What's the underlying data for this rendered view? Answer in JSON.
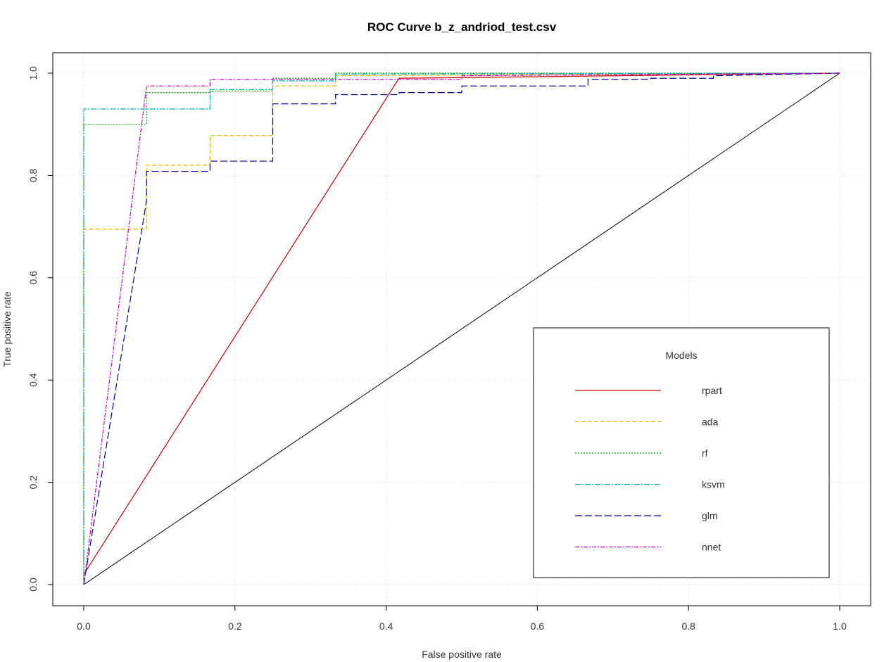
{
  "chart_data": {
    "type": "line",
    "title": "ROC Curve  b_z_andriod_test.csv",
    "xlabel": "False positive rate",
    "ylabel": "True positive rate",
    "xlim": [
      0,
      1
    ],
    "ylim": [
      0,
      1
    ],
    "x_ticks": [
      "0.0",
      "0.2",
      "0.4",
      "0.6",
      "0.8",
      "1.0"
    ],
    "y_ticks": [
      "0.0",
      "0.2",
      "0.4",
      "0.6",
      "0.8",
      "1.0"
    ],
    "grid": true,
    "legend": {
      "title": "Models",
      "position": "bottom-right"
    },
    "series": [
      {
        "name": "rpart",
        "color": "#cc0000",
        "dash": "none",
        "x": [
          0,
          0.417,
          1.0
        ],
        "y": [
          0.02,
          0.99,
          1.0
        ]
      },
      {
        "name": "ada",
        "color": "#e6b800",
        "dash": "6,3",
        "x": [
          0,
          0,
          0.083,
          0.083,
          0.167,
          0.167,
          0.25,
          0.25,
          0.333,
          0.333,
          1.0
        ],
        "y": [
          0,
          0.695,
          0.695,
          0.82,
          0.82,
          0.878,
          0.878,
          0.975,
          0.975,
          0.995,
          1.0
        ]
      },
      {
        "name": "rf",
        "color": "#00a000",
        "dash": "2,2",
        "x": [
          0,
          0,
          0.083,
          0.083,
          0.167,
          0.167,
          0.25,
          0.25,
          0.333,
          0.333,
          1.0
        ],
        "y": [
          0,
          0.9,
          0.9,
          0.962,
          0.962,
          0.965,
          0.965,
          0.99,
          0.99,
          1.0,
          1.0
        ]
      },
      {
        "name": "ksvm",
        "color": "#00b8b8",
        "dash": "8,2,2,2",
        "x": [
          0,
          0,
          0.167,
          0.167,
          0.25,
          0.25,
          0.333,
          0.333,
          1.0
        ],
        "y": [
          0,
          0.93,
          0.93,
          0.968,
          0.968,
          0.985,
          0.985,
          0.998,
          1.0
        ]
      },
      {
        "name": "glm",
        "color": "#000099",
        "dash": "10,4",
        "x": [
          0,
          0.083,
          0.083,
          0.167,
          0.167,
          0.25,
          0.25,
          0.333,
          0.333,
          0.417,
          0.417,
          0.5,
          0.5,
          0.667,
          0.667,
          0.75,
          0.75,
          0.833,
          0.833,
          1.0
        ],
        "y": [
          0,
          0.75,
          0.808,
          0.808,
          0.828,
          0.828,
          0.94,
          0.94,
          0.958,
          0.958,
          0.962,
          0.962,
          0.975,
          0.975,
          0.988,
          0.988,
          0.99,
          0.99,
          0.995,
          1.0
        ]
      },
      {
        "name": "nnet",
        "color": "#cc00cc",
        "dash": "6,2,2,2",
        "x": [
          0,
          0.083,
          0.167,
          0.167,
          0.5,
          0.5,
          1.0
        ],
        "y": [
          0,
          0.975,
          0.975,
          0.988,
          0.988,
          0.995,
          1.0
        ]
      }
    ],
    "reference_line": {
      "color": "#000000",
      "x": [
        0,
        1
      ],
      "y": [
        0,
        1
      ]
    }
  }
}
